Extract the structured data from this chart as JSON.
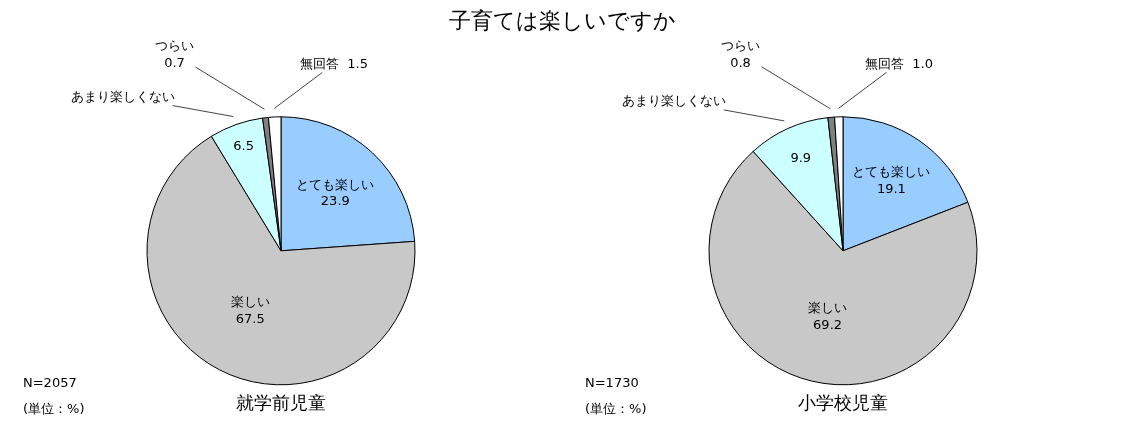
{
  "chart_data": [
    {
      "type": "pie",
      "title": "子育ては楽しいですか",
      "xlabel": "就学前児童",
      "categories": [
        "とても楽しい",
        "楽しい",
        "あまり楽しくない",
        "つらい",
        "無回答"
      ],
      "values": [
        23.9,
        67.5,
        6.5,
        0.7,
        1.5
      ],
      "value_labels": [
        "23.9",
        "67.5",
        "6.5",
        "0.7",
        "1.5"
      ],
      "colors": [
        "#99ccff",
        "#c8c8c8",
        "#ccffff",
        "#808080",
        "#ffffff"
      ],
      "legend": false,
      "annotations": [
        "N=2057",
        "(単位：%)"
      ]
    },
    {
      "type": "pie",
      "xlabel": "小学校児童",
      "categories": [
        "とても楽しい",
        "楽しい",
        "あまり楽しくない",
        "つらい",
        "無回答"
      ],
      "values": [
        19.1,
        69.2,
        9.9,
        0.8,
        1.0
      ],
      "value_labels": [
        "19.1",
        "69.2",
        "9.9",
        "0.8",
        "1.0"
      ],
      "colors": [
        "#99ccff",
        "#c8c8c8",
        "#ccffff",
        "#808080",
        "#ffffff"
      ],
      "legend": false,
      "annotations": [
        "N=1730",
        "(単位：%)"
      ]
    }
  ]
}
